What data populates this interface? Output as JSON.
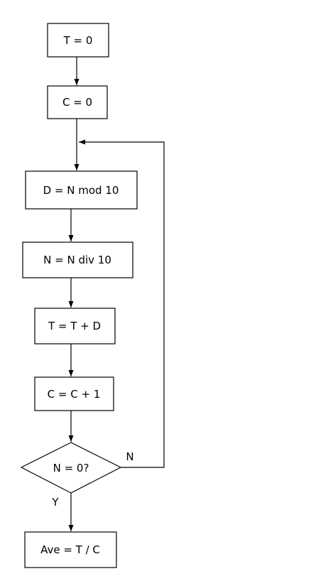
{
  "diagram": {
    "type": "flowchart",
    "steps": [
      {
        "id": "step1",
        "label": "T = 0"
      },
      {
        "id": "step2",
        "label": "C = 0"
      },
      {
        "id": "step3",
        "label": "D = N mod 10"
      },
      {
        "id": "step4",
        "label": "N = N div 10"
      },
      {
        "id": "step5",
        "label": "T = T + D"
      },
      {
        "id": "step6",
        "label": "C = C + 1"
      }
    ],
    "decision": {
      "label": "N = 0?",
      "no_label": "N",
      "yes_label": "Y"
    },
    "end": {
      "label": "Ave = T / C"
    },
    "colors": {
      "stroke": "#000000",
      "fill": "#ffffff",
      "text": "#000000"
    }
  }
}
